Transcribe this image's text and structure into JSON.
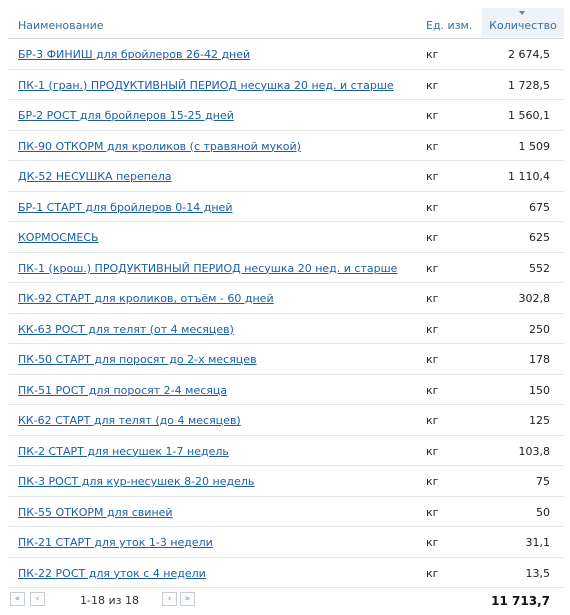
{
  "header": {
    "name": "Наименование",
    "unit": "Ед. изм.",
    "qty": "Количество"
  },
  "rows": [
    {
      "name": "БР-3 ФИНИШ для бройлеров 26-42 дней",
      "unit": "кг",
      "qty": "2 674,5"
    },
    {
      "name": "ПК-1 (гран.) ПРОДУКТИВНЫЙ ПЕРИОД несушка 20 нед. и старше",
      "unit": "кг",
      "qty": "1 728,5"
    },
    {
      "name": "БР-2 РОСТ для бройлеров 15-25 дней",
      "unit": "кг",
      "qty": "1 560,1"
    },
    {
      "name": "ПК-90 ОТКОРМ для кроликов (с травяной мукой)",
      "unit": "кг",
      "qty": "1 509"
    },
    {
      "name": "ДК-52 НЕСУШКА перепела",
      "unit": "кг",
      "qty": "1 110,4"
    },
    {
      "name": "БР-1 СТАРТ для бройлеров 0-14 дней",
      "unit": "кг",
      "qty": "675"
    },
    {
      "name": "КОРМОСМЕСЬ",
      "unit": "кг",
      "qty": "625"
    },
    {
      "name": "ПК-1 (крош.) ПРОДУКТИВНЫЙ ПЕРИОД несушка 20 нед. и старше",
      "unit": "кг",
      "qty": "552"
    },
    {
      "name": "ПК-92 СТАРТ для кроликов, отъём - 60 дней",
      "unit": "кг",
      "qty": "302,8"
    },
    {
      "name": "КК-63 РОСТ для телят (от 4 месяцев)",
      "unit": "кг",
      "qty": "250"
    },
    {
      "name": "ПК-50 СТАРТ для поросят до 2-х месяцев",
      "unit": "кг",
      "qty": "178"
    },
    {
      "name": "ПК-51 РОСТ для поросят 2-4 месяца",
      "unit": "кг",
      "qty": "150"
    },
    {
      "name": "КК-62 СТАРТ для телят (до 4 месяцев)",
      "unit": "кг",
      "qty": "125"
    },
    {
      "name": "ПК-2 СТАРТ для несушек 1-7 недель",
      "unit": "кг",
      "qty": "103,8"
    },
    {
      "name": "ПК-3 РОСТ для кур-несушек 8-20 недель",
      "unit": "кг",
      "qty": "75"
    },
    {
      "name": "ПК-55 ОТКОРМ для свиней",
      "unit": "кг",
      "qty": "50"
    },
    {
      "name": "ПК-21 СТАРТ для уток 1-3 недели",
      "unit": "кг",
      "qty": "31,1"
    },
    {
      "name": "ПК-22 РОСТ для уток с 4 недели",
      "unit": "кг",
      "qty": "13,5"
    }
  ],
  "footer": {
    "first_icon": "double-chevron-left-icon",
    "prev_icon": "chevron-left-icon",
    "next_icon": "chevron-right-icon",
    "last_icon": "double-chevron-right-icon",
    "page_info": "1-18 из 18",
    "total": "11 713,7"
  },
  "colors": {
    "link": "#1a5ea8",
    "header_text": "#3a6f9a",
    "sorted_header_bg": "#eef3f7"
  }
}
